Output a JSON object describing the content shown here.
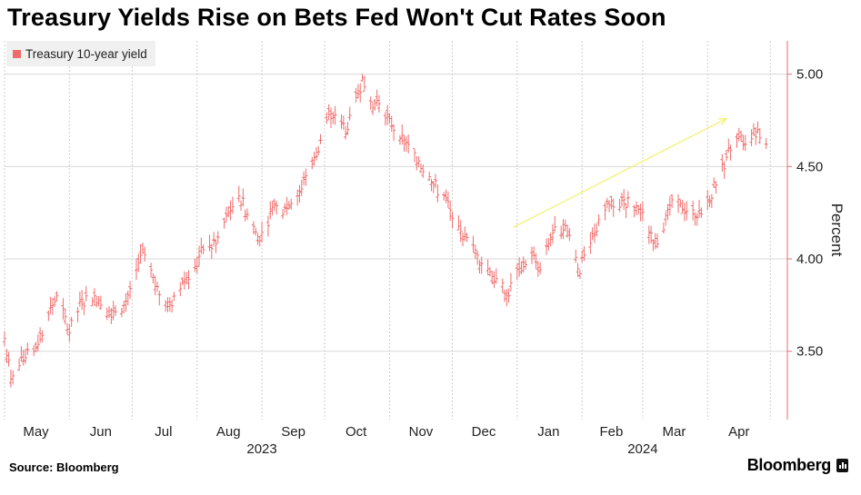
{
  "chart_data": {
    "type": "bar",
    "subtype": "high-low",
    "title": "Treasury Yields Rise on Bets Fed Won't Cut Rates Soon",
    "legend": [
      {
        "label": "Treasury 10-year yield",
        "color": "#f26b6b"
      }
    ],
    "legend_placement": "top-left",
    "ylabel": "Percent",
    "ylim": [
      3.13,
      5.18
    ],
    "yticks": [
      "3.50",
      "4.00",
      "4.50",
      "5.00"
    ],
    "xlim": [
      "2023-05-01",
      "2024-04-30"
    ],
    "xticks": [
      {
        "label": "May",
        "date": "2023-05-16"
      },
      {
        "label": "Jun",
        "date": "2023-06-16"
      },
      {
        "label": "Jul",
        "date": "2023-07-16"
      },
      {
        "label": "Aug",
        "date": "2023-08-16"
      },
      {
        "label": "Sep",
        "date": "2023-09-16"
      },
      {
        "label": "Oct",
        "date": "2023-10-16"
      },
      {
        "label": "Nov",
        "date": "2023-11-16"
      },
      {
        "label": "Dec",
        "date": "2023-12-16"
      },
      {
        "label": "Jan",
        "date": "2024-01-16"
      },
      {
        "label": "Feb",
        "date": "2024-02-15"
      },
      {
        "label": "Mar",
        "date": "2024-03-16"
      },
      {
        "label": "Apr",
        "date": "2024-04-16"
      }
    ],
    "years": [
      {
        "label": "2023",
        "date": "2023-09-01"
      },
      {
        "label": "2024",
        "date": "2024-03-01"
      }
    ],
    "grid": true,
    "series": [
      {
        "name": "Treasury 10-year yield",
        "points": [
          [
            "2023-05-01",
            3.57
          ],
          [
            "2023-05-04",
            3.35
          ],
          [
            "2023-05-10",
            3.45
          ],
          [
            "2023-05-15",
            3.5
          ],
          [
            "2023-05-22",
            3.7
          ],
          [
            "2023-05-26",
            3.8
          ],
          [
            "2023-06-01",
            3.6
          ],
          [
            "2023-06-07",
            3.78
          ],
          [
            "2023-06-13",
            3.8
          ],
          [
            "2023-06-20",
            3.72
          ],
          [
            "2023-06-27",
            3.75
          ],
          [
            "2023-06-30",
            3.84
          ],
          [
            "2023-07-06",
            4.05
          ],
          [
            "2023-07-12",
            3.85
          ],
          [
            "2023-07-19",
            3.75
          ],
          [
            "2023-07-25",
            3.88
          ],
          [
            "2023-07-31",
            3.96
          ],
          [
            "2023-08-04",
            4.05
          ],
          [
            "2023-08-10",
            4.08
          ],
          [
            "2023-08-16",
            4.25
          ],
          [
            "2023-08-21",
            4.34
          ],
          [
            "2023-08-25",
            4.24
          ],
          [
            "2023-08-31",
            4.1
          ],
          [
            "2023-09-06",
            4.28
          ],
          [
            "2023-09-12",
            4.28
          ],
          [
            "2023-09-19",
            4.36
          ],
          [
            "2023-09-22",
            4.45
          ],
          [
            "2023-09-28",
            4.58
          ],
          [
            "2023-10-03",
            4.8
          ],
          [
            "2023-10-06",
            4.78
          ],
          [
            "2023-10-12",
            4.7
          ],
          [
            "2023-10-19",
            4.98
          ],
          [
            "2023-10-23",
            4.85
          ],
          [
            "2023-10-27",
            4.84
          ],
          [
            "2023-11-01",
            4.76
          ],
          [
            "2023-11-06",
            4.65
          ],
          [
            "2023-11-10",
            4.62
          ],
          [
            "2023-11-15",
            4.53
          ],
          [
            "2023-11-21",
            4.41
          ],
          [
            "2023-11-28",
            4.33
          ],
          [
            "2023-12-01",
            4.22
          ],
          [
            "2023-12-06",
            4.12
          ],
          [
            "2023-12-13",
            4.02
          ],
          [
            "2023-12-19",
            3.93
          ],
          [
            "2023-12-27",
            3.8
          ],
          [
            "2024-01-02",
            3.95
          ],
          [
            "2024-01-08",
            4.02
          ],
          [
            "2024-01-12",
            3.94
          ],
          [
            "2024-01-18",
            4.14
          ],
          [
            "2024-01-24",
            4.18
          ],
          [
            "2024-01-31",
            3.92
          ],
          [
            "2024-02-02",
            4.02
          ],
          [
            "2024-02-08",
            4.15
          ],
          [
            "2024-02-13",
            4.31
          ],
          [
            "2024-02-21",
            4.32
          ],
          [
            "2024-02-28",
            4.27
          ],
          [
            "2024-03-05",
            4.14
          ],
          [
            "2024-03-08",
            4.08
          ],
          [
            "2024-03-14",
            4.29
          ],
          [
            "2024-03-19",
            4.3
          ],
          [
            "2024-03-26",
            4.23
          ],
          [
            "2024-04-01",
            4.32
          ],
          [
            "2024-04-05",
            4.4
          ],
          [
            "2024-04-10",
            4.55
          ],
          [
            "2024-04-16",
            4.66
          ],
          [
            "2024-04-19",
            4.62
          ],
          [
            "2024-04-25",
            4.7
          ],
          [
            "2024-04-29",
            4.62
          ]
        ]
      }
    ],
    "annotations": [
      {
        "type": "arrow",
        "color": "#f5f06a",
        "from": [
          "2023-12-30",
          4.17
        ],
        "to": [
          "2024-04-10",
          4.76
        ]
      }
    ]
  },
  "footer": {
    "source": "Source: Bloomberg",
    "brand": "Bloomberg"
  },
  "colors": {
    "series": "#f26b6b",
    "axis": "#f26b6b",
    "grid": "#d8d8d8"
  }
}
